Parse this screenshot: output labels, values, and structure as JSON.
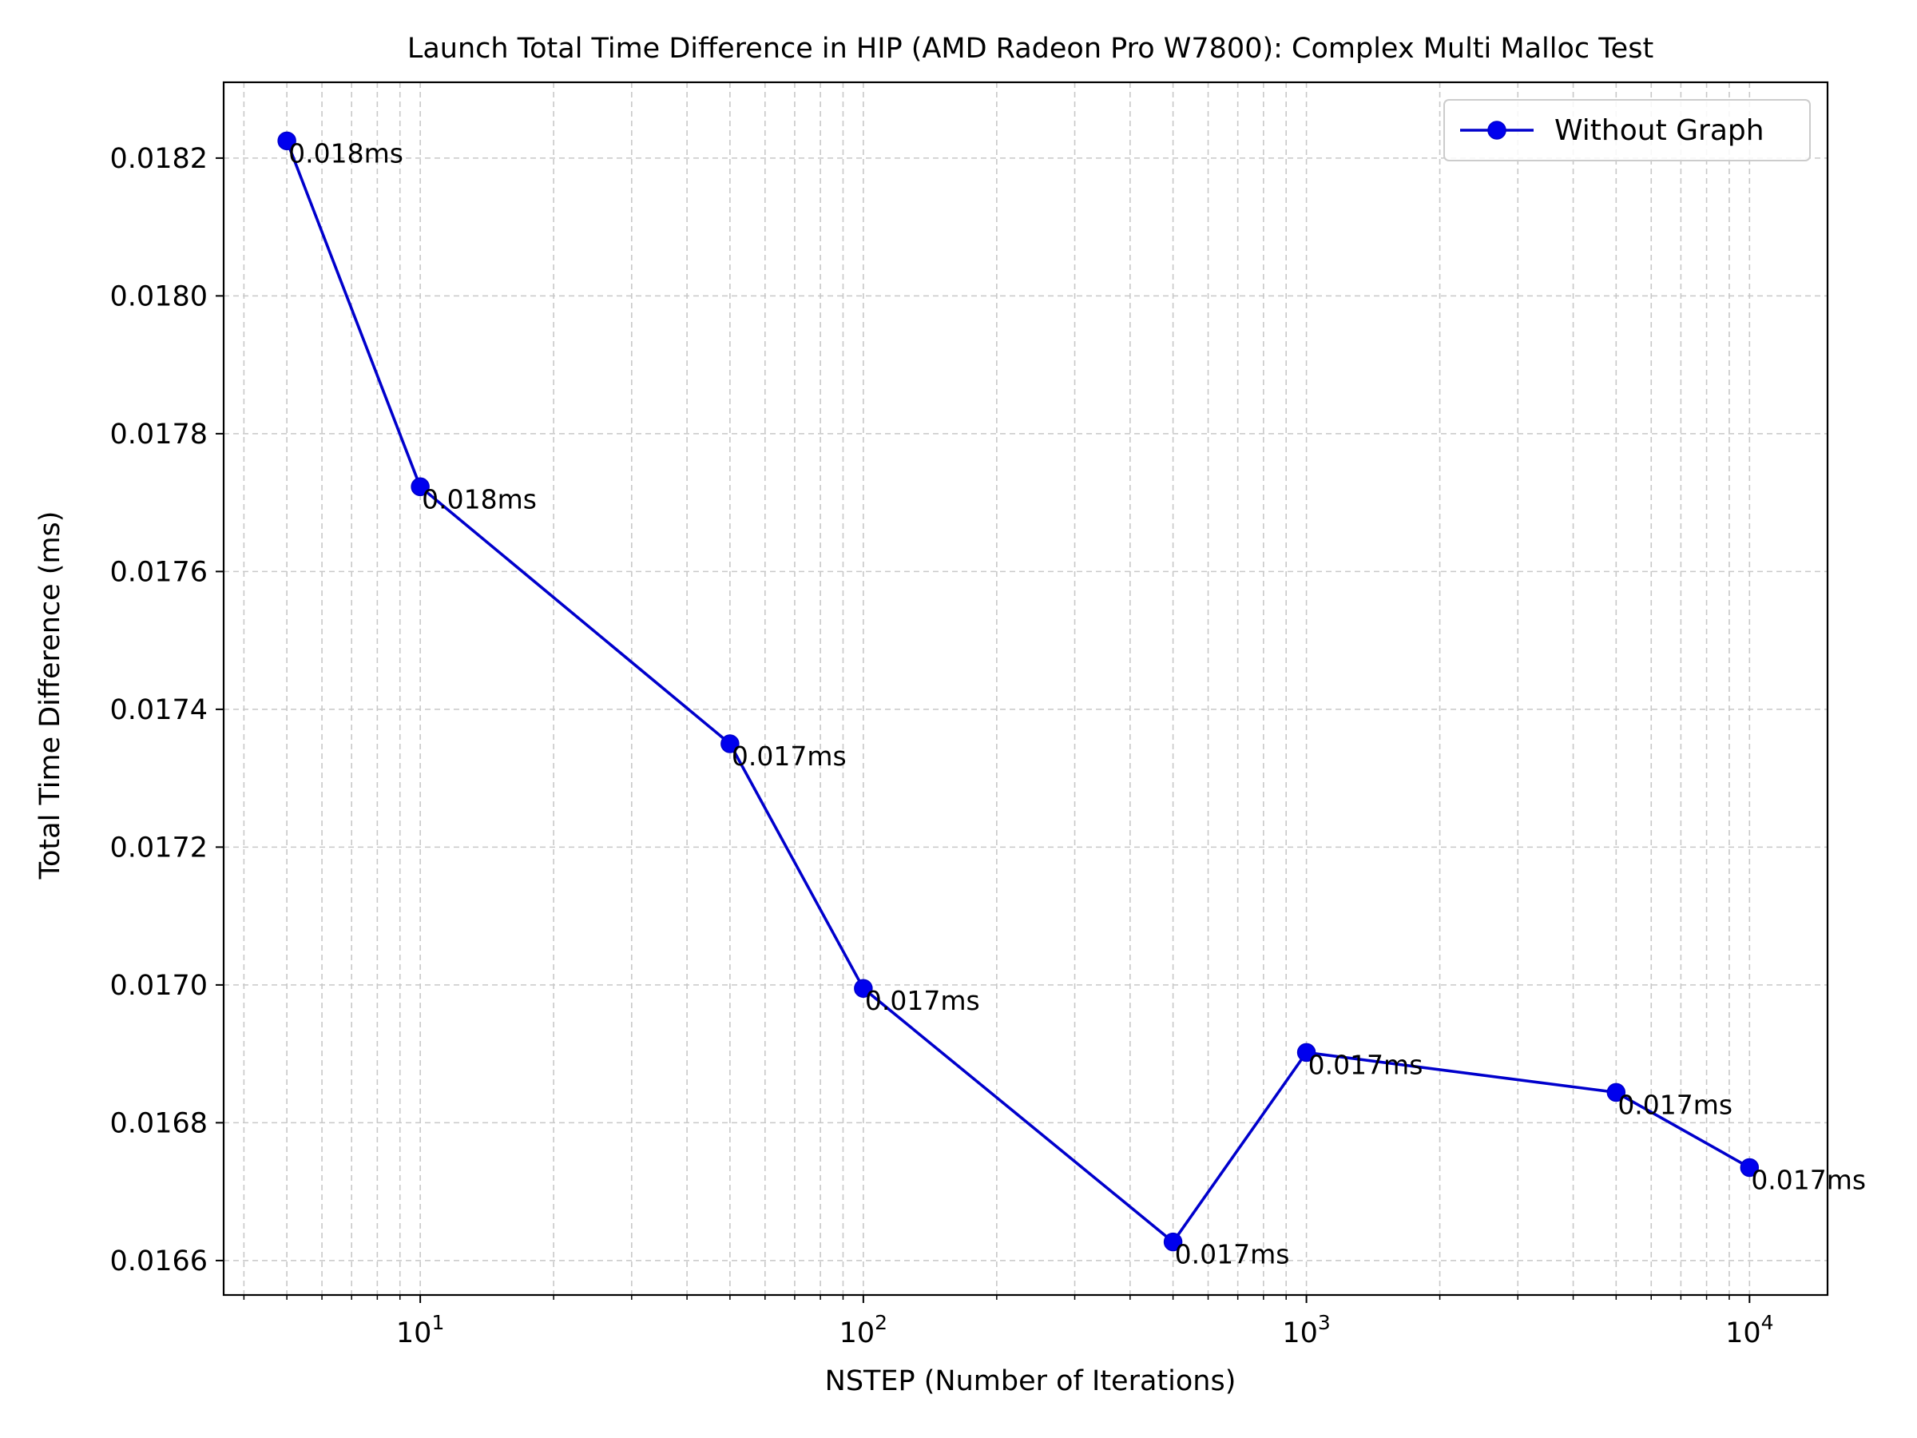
{
  "chart_data": {
    "type": "line",
    "title": "Launch Total Time Difference in HIP (AMD Radeon Pro W7800): Complex Multi Malloc Test",
    "xlabel": "NSTEP (Number of Iterations)",
    "ylabel": "Total Time Difference (ms)",
    "x_scale": "log",
    "xlim": [
      3.6,
      15000
    ],
    "ylim": [
      0.01655,
      0.01831
    ],
    "x_tick_labels": [
      {
        "base": "10",
        "exp": "1",
        "value": 10
      },
      {
        "base": "10",
        "exp": "2",
        "value": 100
      },
      {
        "base": "10",
        "exp": "3",
        "value": 1000
      },
      {
        "base": "10",
        "exp": "4",
        "value": 10000
      }
    ],
    "y_ticks": [
      "0.0166",
      "0.0168",
      "0.0170",
      "0.0172",
      "0.0174",
      "0.0176",
      "0.0178",
      "0.0180",
      "0.0182"
    ],
    "grid": true,
    "legend_position": "top-right",
    "series": [
      {
        "name": "Without Graph",
        "color": "#0000cc",
        "marker_color": "#0000ee",
        "x": [
          5,
          10,
          50,
          100,
          500,
          1000,
          5000,
          10000
        ],
        "y": [
          0.018225,
          0.017723,
          0.01735,
          0.016995,
          0.016627,
          0.016902,
          0.016844,
          0.016735
        ],
        "data_labels": [
          "0.018ms",
          "0.018ms",
          "0.017ms",
          "0.017ms",
          "0.017ms",
          "0.017ms",
          "0.017ms",
          "0.017ms"
        ]
      }
    ]
  }
}
